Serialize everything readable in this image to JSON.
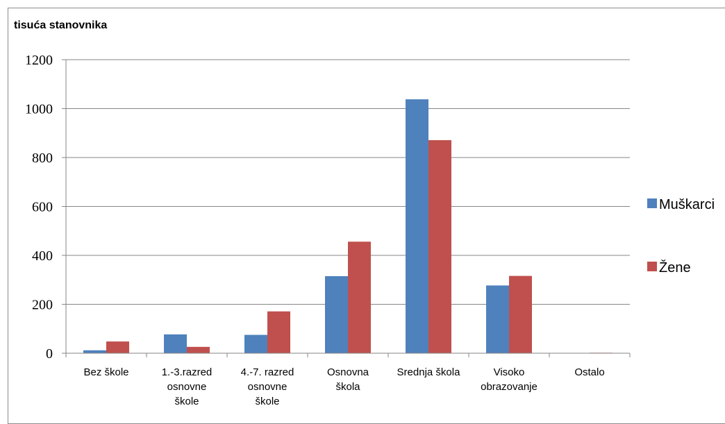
{
  "chart_data": {
    "type": "bar",
    "ylabel": "tisuća stanovnika",
    "categories": [
      [
        "Bez škole"
      ],
      [
        "1.-3.razred",
        "osnovne",
        "škole"
      ],
      [
        "4.-7. razred",
        "osnovne",
        "škole"
      ],
      [
        "Osnovna",
        "škola"
      ],
      [
        "Srednja škola"
      ],
      [
        "Visoko",
        "obrazovanje"
      ],
      [
        "Ostalo"
      ]
    ],
    "series": [
      {
        "name": "Muškarci",
        "color": "#4f81bd",
        "values": [
          12,
          77,
          75,
          315,
          1038,
          277,
          0
        ]
      },
      {
        "name": "Žene",
        "color": "#c0504d",
        "values": [
          48,
          26,
          171,
          456,
          871,
          316,
          2
        ]
      }
    ],
    "ylim": [
      0,
      1200
    ],
    "yticks": [
      "0",
      "200",
      "400",
      "600",
      "800",
      "1000",
      "1200"
    ],
    "grid": true,
    "legend": "right"
  }
}
